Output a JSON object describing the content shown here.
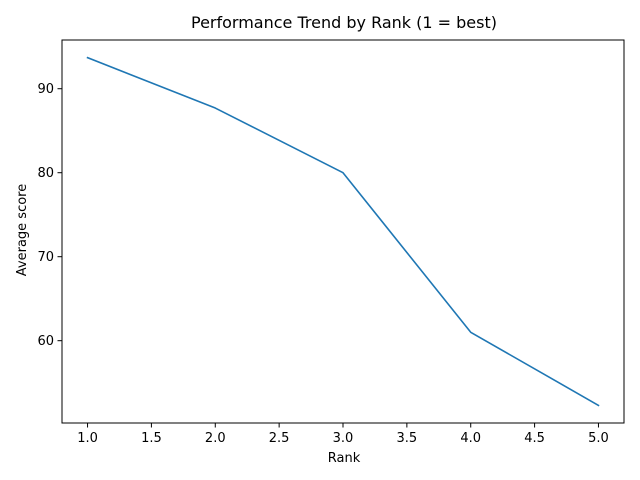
{
  "chart_data": {
    "type": "line",
    "title": "Performance Trend by Rank (1 = best)",
    "xlabel": "Rank",
    "ylabel": "Average score",
    "x": [
      1,
      2,
      3,
      4,
      5
    ],
    "series": [
      {
        "values": [
          93.7,
          87.7,
          80.0,
          61.0,
          52.3
        ],
        "color": "#1f77b4"
      }
    ],
    "xlim": [
      0.8,
      5.2
    ],
    "ylim": [
      50.2,
      95.8
    ],
    "xticks": [
      1.0,
      1.5,
      2.0,
      2.5,
      3.0,
      3.5,
      4.0,
      4.5,
      5.0
    ],
    "xtick_labels": [
      "1.0",
      "1.5",
      "2.0",
      "2.5",
      "3.0",
      "3.5",
      "4.0",
      "4.5",
      "5.0"
    ],
    "yticks": [
      60,
      70,
      80,
      90
    ],
    "ytick_labels": [
      "60",
      "70",
      "80",
      "90"
    ],
    "grid": false,
    "legend": "none"
  }
}
